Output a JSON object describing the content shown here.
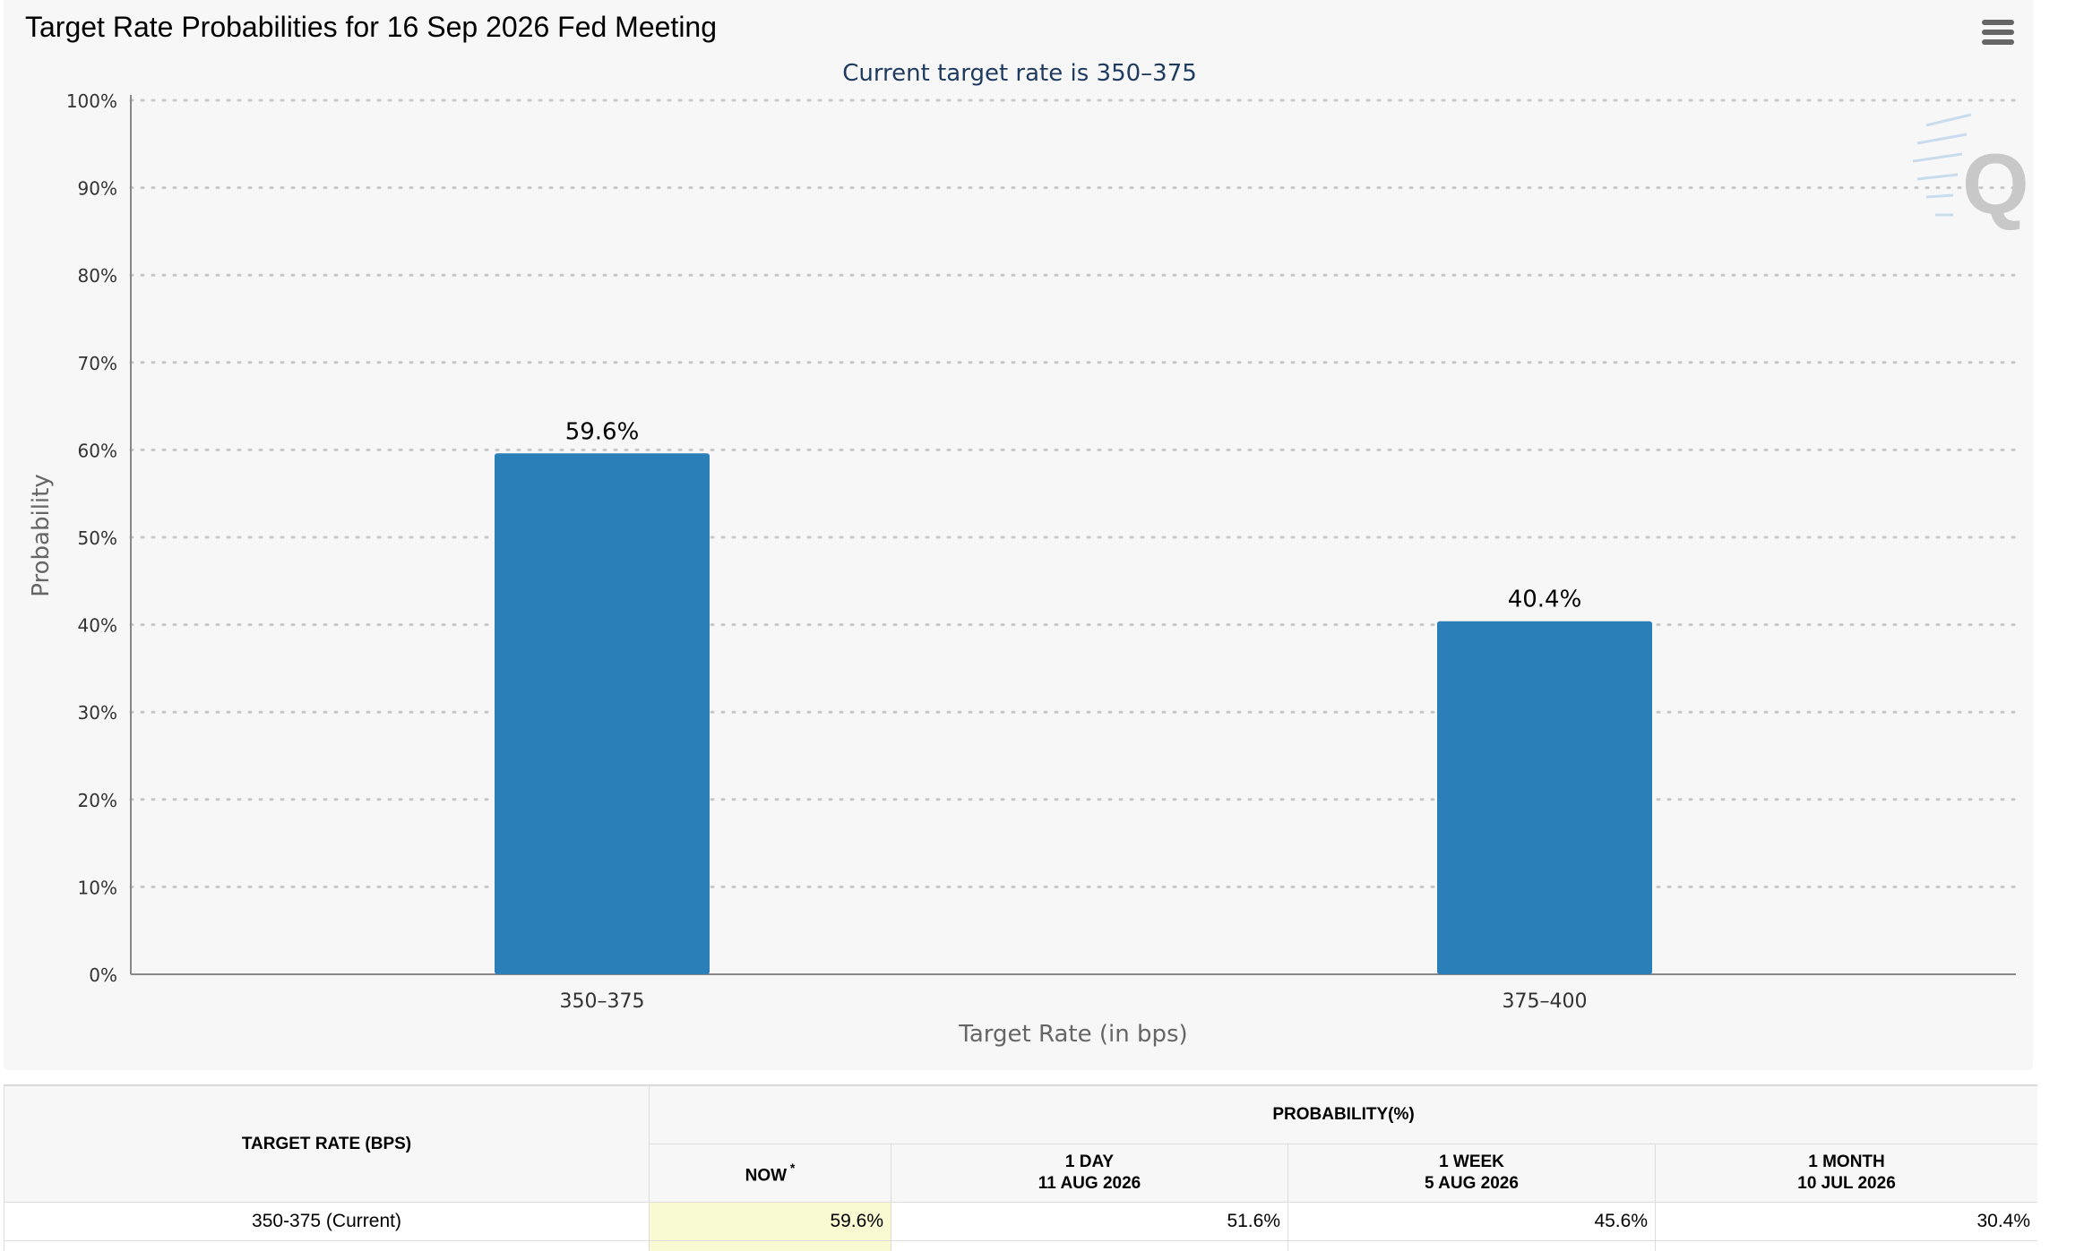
{
  "page_title": "Target Rate Probabilities for 16 Sep 2026 Fed Meeting",
  "menu_icon": "hamburger-menu-icon",
  "watermark": "Q",
  "chart_data": {
    "type": "bar",
    "title": "Target Rate Probabilities for 16 Sep 2026 Fed Meeting",
    "subtitle": "Current target rate is 350–375",
    "categories": [
      "350–375",
      "375–400"
    ],
    "values": [
      59.6,
      40.4
    ],
    "data_labels": [
      "59.6%",
      "40.4%"
    ],
    "xlabel": "Target Rate (in bps)",
    "ylabel": "Probability",
    "ylim": [
      0,
      100
    ],
    "yticks": [
      "0%",
      "10%",
      "20%",
      "30%",
      "40%",
      "50%",
      "60%",
      "70%",
      "80%",
      "90%",
      "100%"
    ],
    "grid": true,
    "bar_color": "#2a7fb8",
    "subtitle_color": "#1f3a5f"
  },
  "table": {
    "target_rate_header": "TARGET RATE (BPS)",
    "probability_header": "PROBABILITY(%)",
    "columns": [
      {
        "line1": "NOW",
        "line2": "",
        "star": "*"
      },
      {
        "line1": "1 DAY",
        "line2": "11 AUG 2026",
        "star": ""
      },
      {
        "line1": "1 WEEK",
        "line2": "5 AUG 2026",
        "star": ""
      },
      {
        "line1": "1 MONTH",
        "line2": "10 JUL 2026",
        "star": ""
      }
    ],
    "rows": [
      {
        "rate": "350-375 (Current)",
        "values": [
          "59.6%",
          "51.6%",
          "45.6%",
          "30.4%"
        ]
      }
    ],
    "now_highlight_color": "#fafad2"
  }
}
